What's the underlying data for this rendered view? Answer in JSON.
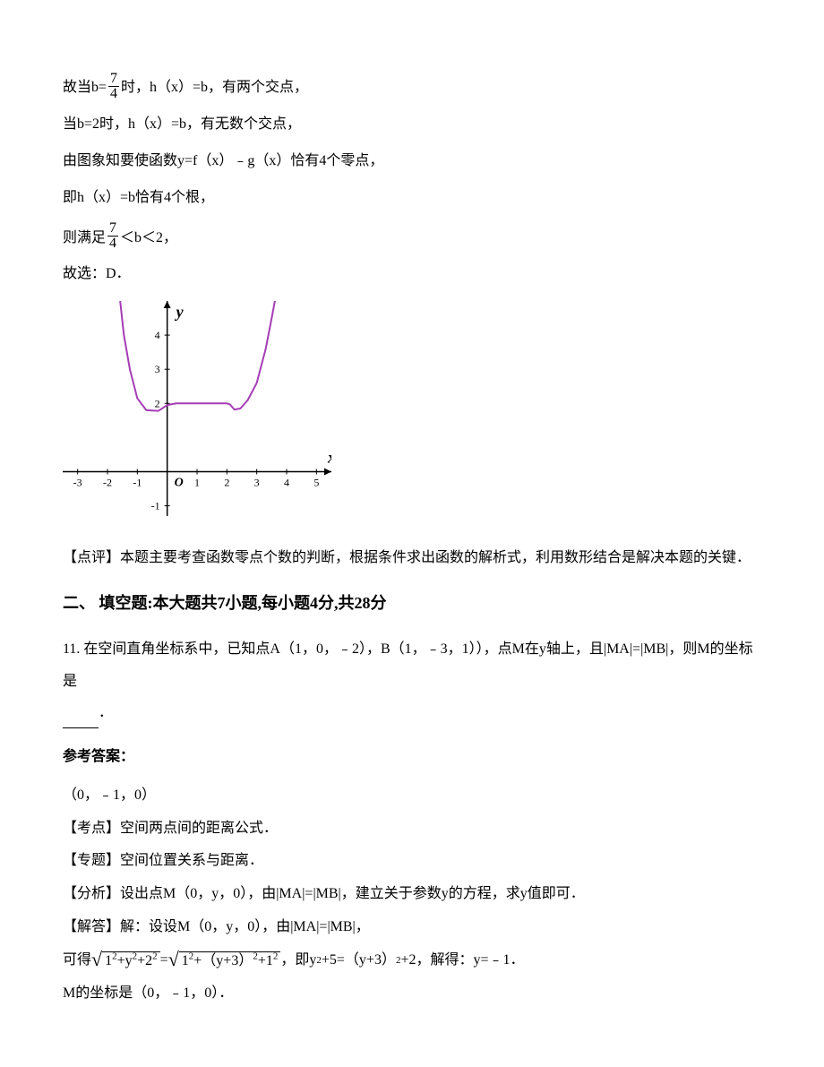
{
  "p1": {
    "a": "故当b=",
    "frac_n": "7",
    "frac_d": "4",
    "b": "时，h（x）=b，有两个交点，"
  },
  "p2": "当b=2时，h（x）=b，有无数个交点，",
  "p3": "由图象知要使函数y=f（x）﹣g（x）恰有4个零点，",
  "p4": "即h（x）=b恰有4个根，",
  "p5": {
    "a": "则满足",
    "frac_n": "7",
    "frac_d": "4",
    "b": "＜b＜2，"
  },
  "p6": "故选：D．",
  "chart": {
    "type": "line",
    "xlim": [
      -3.5,
      5.5
    ],
    "ylim": [
      -1.3,
      5
    ],
    "xticks": [
      -3,
      -2,
      -1,
      1,
      2,
      3,
      4,
      5
    ],
    "yticks": [
      -1,
      2,
      3,
      4
    ],
    "x_label": "x",
    "y_label": "y",
    "origin_label": "O",
    "curve_color": "#a53db5",
    "curve_width": 2,
    "axis_color": "#000000",
    "background_color": "#ffffff",
    "curve_points": [
      [
        -1.6,
        5.2
      ],
      [
        -1.45,
        4.0
      ],
      [
        -1.25,
        3.0
      ],
      [
        -1.0,
        2.15
      ],
      [
        -0.7,
        1.8
      ],
      [
        -0.3,
        1.78
      ],
      [
        0.0,
        1.95
      ],
      [
        0.3,
        2.0
      ],
      [
        1.0,
        2.0
      ],
      [
        1.5,
        2.0
      ],
      [
        2.0,
        2.0
      ],
      [
        2.1,
        1.97
      ],
      [
        2.25,
        1.82
      ],
      [
        2.45,
        1.85
      ],
      [
        2.7,
        2.1
      ],
      [
        3.0,
        2.6
      ],
      [
        3.3,
        3.6
      ],
      [
        3.5,
        4.5
      ],
      [
        3.65,
        5.2
      ]
    ]
  },
  "p7": "【点评】本题主要考查函数零点个数的判断，根据条件求出函数的解析式，利用数形结合是解决本题的关键．",
  "section2": "二、 填空题:本大题共7小题,每小题4分,共28分",
  "q11a": "11. 在空间直角坐标系中，已知点A（1，0，﹣2），B（1，﹣3，1）），点M在y轴上，且|MA|=|MB|，则M的坐标是",
  "q11b": "．",
  "ans_heading": "参考答案：",
  "a1": "（0，﹣1，0）",
  "a2": "【考点】空间两点间的距离公式．",
  "a3": "【专题】空间位置关系与距离．",
  "a4": "【分析】设出点M（0，y，0），由|MA|=|MB|，建立关于参数y的方程，求y值即可．",
  "a5": "【解答】解：设设M（0，y，0），由|MA|=|MB|，",
  "a6": {
    "a": "可得",
    "s1": "1",
    "s2": "+y",
    "s3": "+2",
    "eq": "=",
    "s4": "1",
    "s5": "+（y+3）",
    "s6": "+1",
    "b": "，即y",
    "c": "+5=（y+3）",
    "d": "+2，解得：y=﹣1．"
  },
  "a7": "M的坐标是（0，﹣1，0）．"
}
